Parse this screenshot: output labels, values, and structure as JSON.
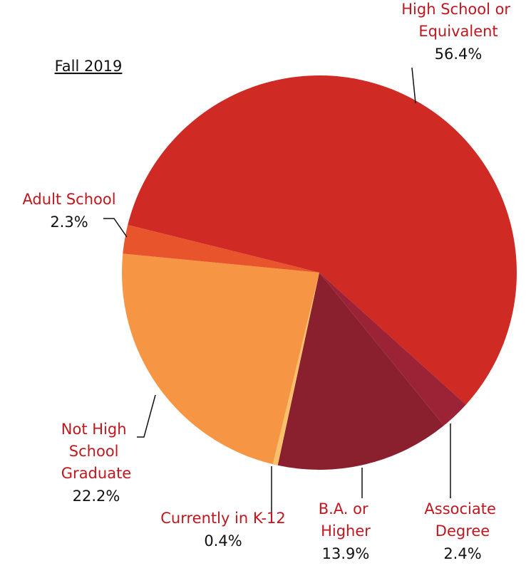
{
  "chart_data": {
    "type": "pie",
    "title": "Fall 2019",
    "categories": [
      "High School or Equivalent",
      "Associate Degree",
      "B.A. or Higher",
      "Currently in K-12",
      "Not High School Graduate",
      "Adult School"
    ],
    "values": [
      56.4,
      2.4,
      13.9,
      0.4,
      22.2,
      2.3
    ],
    "value_labels": [
      "56.4%",
      "2.4%",
      "13.9%",
      "0.4%",
      "22.2%",
      "2.3%"
    ],
    "colors": [
      "#cf2a23",
      "#9b2335",
      "#8a1f2e",
      "#f9c06c",
      "#f69543",
      "#e8552c"
    ]
  }
}
